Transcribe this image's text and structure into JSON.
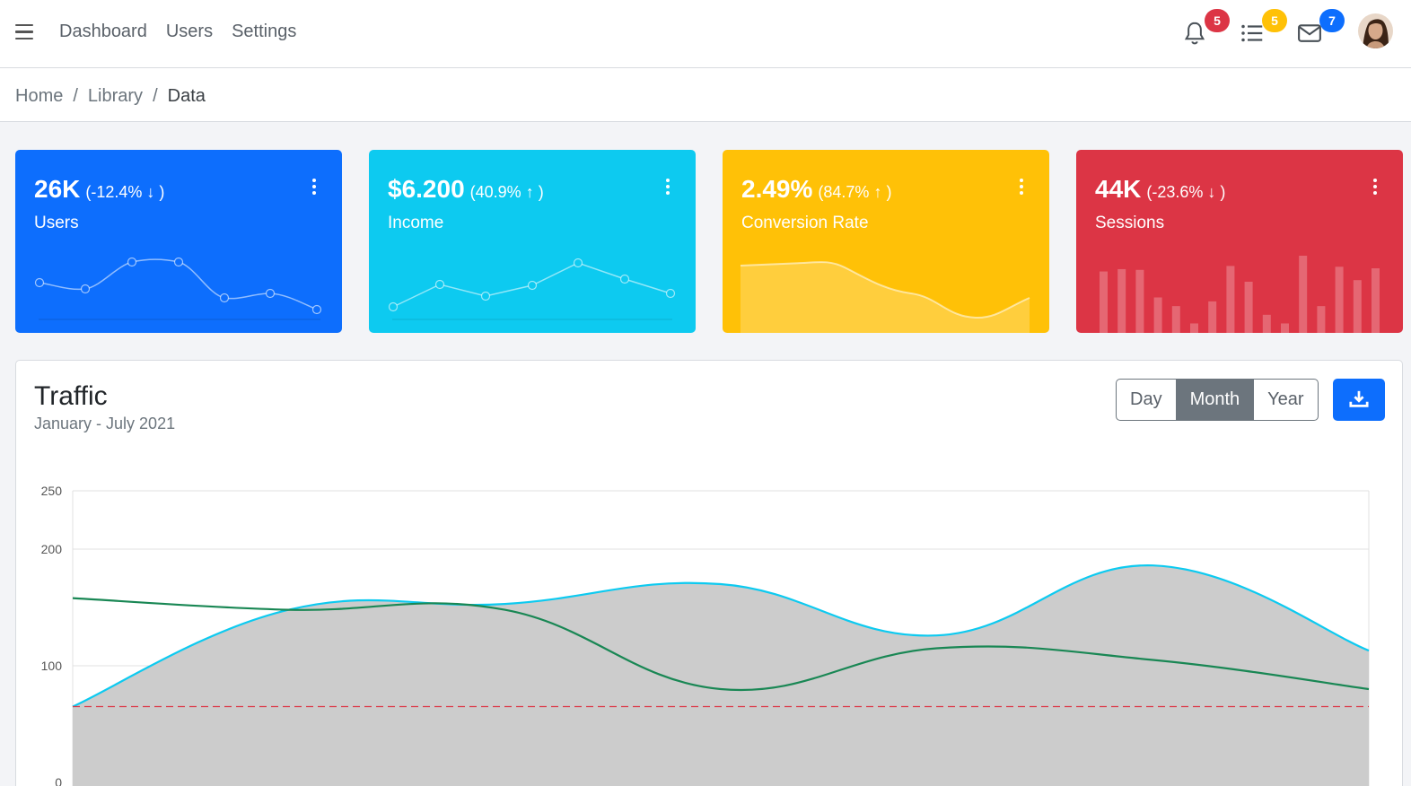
{
  "header": {
    "nav": [
      "Dashboard",
      "Users",
      "Settings"
    ],
    "notifications_count": "5",
    "tasks_count": "5",
    "messages_count": "7"
  },
  "breadcrumb": [
    "Home",
    "Library",
    "Data"
  ],
  "stats": [
    {
      "value": "26K",
      "change": "(-12.4%",
      "direction": "down",
      "label": "Users",
      "color": "#0d6efd"
    },
    {
      "value": "$6.200",
      "change": "(40.9%",
      "direction": "up",
      "label": "Income",
      "color": "#0dcaf0"
    },
    {
      "value": "2.49%",
      "change": "(84.7%",
      "direction": "up",
      "label": "Conversion Rate",
      "color": "#ffc107"
    },
    {
      "value": "44K",
      "change": "(-23.6%",
      "direction": "down",
      "label": "Sessions",
      "color": "#dc3545"
    }
  ],
  "sparklines": {
    "users": [
      65,
      59,
      84,
      84,
      51,
      55,
      40
    ],
    "income": [
      1,
      18,
      9,
      17,
      34,
      22,
      11
    ],
    "conversion": [
      78,
      81,
      80,
      45,
      34,
      12,
      40
    ],
    "sessions": [
      78,
      81,
      80,
      45,
      34,
      12,
      40,
      85,
      65,
      23,
      12,
      98,
      34,
      84,
      67,
      82
    ]
  },
  "traffic": {
    "title": "Traffic",
    "subtitle": "January - July 2021",
    "periods": [
      "Day",
      "Month",
      "Year"
    ],
    "selected_period": "Month"
  },
  "chart_data": {
    "type": "area",
    "x_count": 7,
    "ylim": [
      0,
      250
    ],
    "yticks": [
      0,
      100,
      200,
      250
    ],
    "series": [
      {
        "color": "#0dcaf0",
        "fill": "#cccccc",
        "values": [
          65,
          148,
          153,
          170,
          126,
          186,
          113
        ]
      },
      {
        "color": "#198754",
        "values": [
          158,
          148,
          148,
          80,
          115,
          105,
          80
        ]
      }
    ],
    "threshold": {
      "value": 65,
      "color": "#dc3545"
    }
  }
}
